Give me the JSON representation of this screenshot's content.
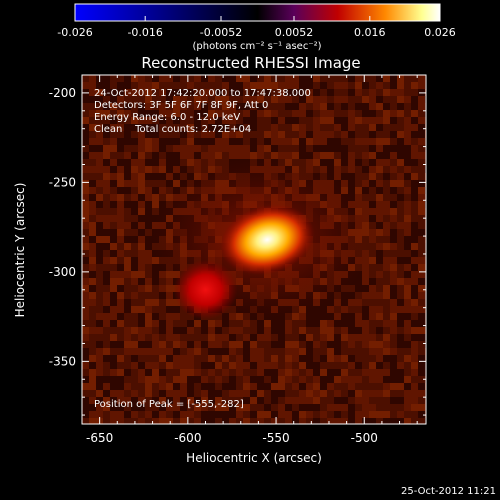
{
  "colors": {
    "background": "#000000",
    "text": "#ffffff",
    "colormap": [
      "#0000ff",
      "#000000",
      "#6a006a",
      "#c80000",
      "#ff8800",
      "#ffffc8",
      "#ffffff"
    ]
  },
  "colorbar": {
    "ticks": [
      "-0.026",
      "-0.016",
      "-0.0052",
      "0.0052",
      "0.016",
      "0.026"
    ],
    "unit_label": "(photons cm⁻² s⁻¹ asec⁻²)"
  },
  "annotations": {
    "time_range": "24-Oct-2012 17:42:20.000 to 17:47:38.000",
    "detectors": "Detectors: 3F 5F 6F 7F 8F 9F, Att 0",
    "energy": "Energy Range: 6.0 - 12.0 keV",
    "clean": "Clean    Total counts: 2.72E+04",
    "peak": "Position of Peak = [-555,-282]"
  },
  "footer": {
    "timestamp": "25-Oct-2012 11:21"
  },
  "chart_data": {
    "type": "heatmap",
    "title": "Reconstructed RHESSI Image",
    "xlabel": "Heliocentric X (arcsec)",
    "ylabel": "Heliocentric Y (arcsec)",
    "xlim": [
      -660,
      -465
    ],
    "ylim": [
      -385,
      -190
    ],
    "x_ticks": [
      -650,
      -600,
      -550,
      -500
    ],
    "y_ticks": [
      -200,
      -250,
      -300,
      -350
    ],
    "x_tick_labels": [
      "-650",
      "-600",
      "-550",
      "-500"
    ],
    "y_tick_labels": [
      "-200",
      "-250",
      "-300",
      "-350"
    ],
    "colorbar_range": [
      -0.026,
      0.026
    ],
    "peak_position": [
      -555,
      -282
    ],
    "sources": [
      {
        "x": -555,
        "y": -282,
        "relative_intensity": 1.0
      },
      {
        "x": -590,
        "y": -310,
        "relative_intensity": 0.45
      }
    ]
  }
}
